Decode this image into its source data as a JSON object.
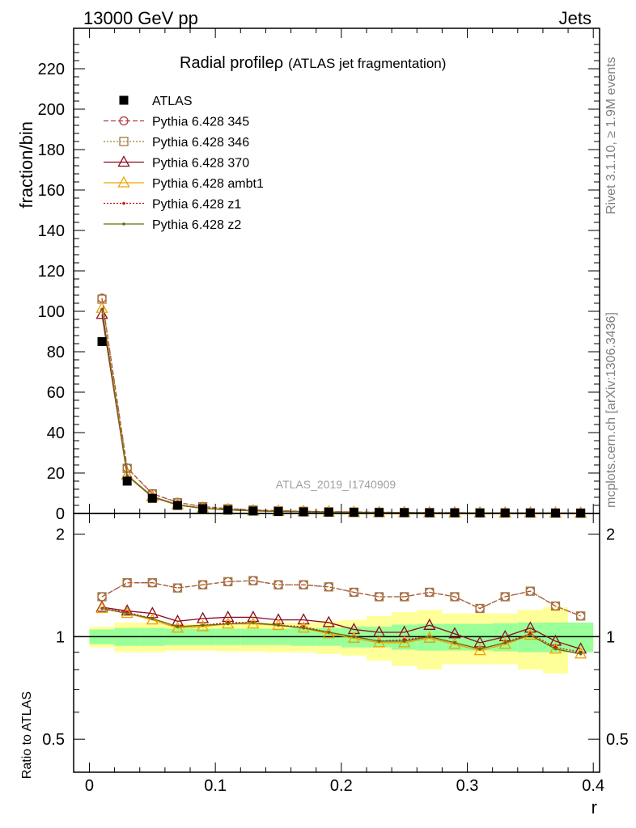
{
  "header": {
    "left": "13000 GeV pp",
    "right": "Jets"
  },
  "side_text": {
    "events": "Rivet 3.1.10, ≥ 1.9M events",
    "source": "mcplots.cern.ch [arXiv:1306.3436]"
  },
  "watermark": "ATLAS_2019_I1740909",
  "title": {
    "main": "Radial profile",
    "symbol": "ρ",
    "paren": "(ATLAS jet fragmentation)"
  },
  "colors": {
    "band_inner": "#99ff99",
    "band_outer": "#ffff99",
    "data": "#000000"
  },
  "chart_data": [
    {
      "type": "scatter",
      "panel": "main",
      "ylabel": "fraction/bin",
      "ylim": [
        0,
        240
      ],
      "xlim": [
        -0.0125,
        0.405
      ],
      "yticks": [
        0,
        20,
        40,
        60,
        80,
        100,
        120,
        140,
        160,
        180,
        200,
        220
      ],
      "x": [
        0.01,
        0.03,
        0.05,
        0.07,
        0.09,
        0.11,
        0.13,
        0.15,
        0.17,
        0.19,
        0.21,
        0.23,
        0.25,
        0.27,
        0.29,
        0.31,
        0.33,
        0.35,
        0.37,
        0.39
      ],
      "series": [
        {
          "name": "ATLAS",
          "color": "#000000",
          "marker": "square",
          "dash": "none",
          "values": [
            85,
            16,
            7.5,
            4.0,
            2.4,
            1.65,
            1.2,
            0.95,
            0.78,
            0.64,
            0.54,
            0.46,
            0.4,
            0.35,
            0.31,
            0.28,
            0.25,
            0.23,
            0.21,
            0.19
          ]
        },
        {
          "name": "Pythia 6.428 345",
          "color": "#b03b3b",
          "marker": "circle",
          "dash": "6,3",
          "values": [
            106.5,
            22.5,
            9.8,
            5.5,
            3.4,
            2.4,
            1.75,
            1.35,
            1.1,
            0.9,
            0.74,
            0.61,
            0.53,
            0.47,
            0.41,
            0.34,
            0.33,
            0.32,
            0.26,
            0.22
          ]
        },
        {
          "name": "Pythia 6.428 346",
          "color": "#a07b3b",
          "marker": "square-open",
          "dash": "2,2",
          "values": [
            106.0,
            22.3,
            9.7,
            5.4,
            3.35,
            2.35,
            1.73,
            1.33,
            1.08,
            0.88,
            0.73,
            0.6,
            0.52,
            0.46,
            0.4,
            0.33,
            0.32,
            0.31,
            0.25,
            0.21
          ]
        },
        {
          "name": "Pythia 6.428 370",
          "color": "#8b0a1e",
          "marker": "triangle",
          "dash": "none",
          "values": [
            98.5,
            19.0,
            8.4,
            4.3,
            2.64,
            1.85,
            1.37,
            1.06,
            0.86,
            0.68,
            0.56,
            0.47,
            0.41,
            0.37,
            0.31,
            0.27,
            0.25,
            0.245,
            0.2,
            0.175
          ]
        },
        {
          "name": "Pythia 6.428 ambt1",
          "color": "#f0a000",
          "marker": "triangle",
          "dash": "none",
          "values": [
            101.5,
            18.9,
            8.2,
            4.2,
            2.55,
            1.78,
            1.31,
            1.01,
            0.82,
            0.64,
            0.52,
            0.43,
            0.38,
            0.34,
            0.29,
            0.25,
            0.235,
            0.23,
            0.19,
            0.165
          ]
        },
        {
          "name": "Pythia 6.428 z1",
          "color": "#cc1010",
          "marker": "dot",
          "dash": "2,2",
          "values": [
            101.0,
            18.7,
            8.1,
            4.2,
            2.55,
            1.78,
            1.31,
            1.01,
            0.82,
            0.65,
            0.53,
            0.44,
            0.39,
            0.35,
            0.3,
            0.26,
            0.24,
            0.235,
            0.195,
            0.17
          ]
        },
        {
          "name": "Pythia 6.428 z2",
          "color": "#6b6b10",
          "marker": "dot",
          "dash": "none",
          "values": [
            101.0,
            18.7,
            8.1,
            4.15,
            2.53,
            1.77,
            1.3,
            1.0,
            0.81,
            0.64,
            0.52,
            0.44,
            0.38,
            0.34,
            0.29,
            0.25,
            0.235,
            0.23,
            0.19,
            0.165
          ]
        }
      ]
    },
    {
      "type": "scatter",
      "panel": "ratio",
      "ylabel": "Ratio to ATLAS",
      "xlabel": "r",
      "log_y": true,
      "ylim": [
        0.4,
        2.3
      ],
      "yticks": [
        0.5,
        1,
        2
      ],
      "xticks": [
        0,
        0.1,
        0.2,
        0.3,
        0.4
      ],
      "x_edges": [
        0.0,
        0.02,
        0.04,
        0.06,
        0.08,
        0.1,
        0.12,
        0.14,
        0.16,
        0.18,
        0.2,
        0.22,
        0.24,
        0.26,
        0.28,
        0.3,
        0.32,
        0.34,
        0.36,
        0.38,
        0.4
      ],
      "band_inner": [
        0.05,
        0.06,
        0.06,
        0.055,
        0.055,
        0.055,
        0.055,
        0.055,
        0.06,
        0.06,
        0.07,
        0.07,
        0.085,
        0.09,
        0.09,
        0.09,
        0.095,
        0.1,
        0.1,
        0.1
      ],
      "band_outer": [
        0.07,
        0.1,
        0.1,
        0.09,
        0.09,
        0.095,
        0.095,
        0.1,
        0.1,
        0.11,
        0.12,
        0.15,
        0.18,
        0.2,
        0.17,
        0.17,
        0.17,
        0.2,
        0.22,
        0.08
      ],
      "series": [
        {
          "name": "Pythia 6.428 345",
          "values": [
            1.31,
            1.44,
            1.44,
            1.39,
            1.42,
            1.45,
            1.46,
            1.42,
            1.42,
            1.4,
            1.35,
            1.31,
            1.31,
            1.35,
            1.31,
            1.21,
            1.31,
            1.36,
            1.23,
            1.15
          ]
        },
        {
          "name": "Pythia 6.428 346",
          "values": [
            1.31,
            1.44,
            1.44,
            1.39,
            1.42,
            1.45,
            1.46,
            1.42,
            1.42,
            1.4,
            1.35,
            1.31,
            1.31,
            1.35,
            1.31,
            1.21,
            1.31,
            1.36,
            1.23,
            1.15
          ]
        },
        {
          "name": "Pythia 6.428 370",
          "values": [
            1.22,
            1.19,
            1.17,
            1.11,
            1.13,
            1.14,
            1.14,
            1.12,
            1.12,
            1.1,
            1.05,
            1.03,
            1.03,
            1.08,
            1.02,
            0.96,
            1.0,
            1.06,
            0.97,
            0.92
          ]
        },
        {
          "name": "Pythia 6.428 ambt1",
          "values": [
            1.21,
            1.17,
            1.12,
            1.06,
            1.07,
            1.09,
            1.09,
            1.08,
            1.06,
            1.02,
            0.99,
            0.96,
            0.96,
            0.99,
            0.95,
            0.91,
            0.95,
            1.01,
            0.92,
            0.89
          ]
        },
        {
          "name": "Pythia 6.428 z1",
          "values": [
            1.21,
            1.18,
            1.13,
            1.07,
            1.08,
            1.1,
            1.1,
            1.08,
            1.07,
            1.03,
            1.0,
            0.97,
            0.98,
            1.0,
            0.96,
            0.92,
            0.96,
            1.02,
            0.93,
            0.9
          ]
        },
        {
          "name": "Pythia 6.428 z2",
          "values": [
            1.21,
            1.17,
            1.13,
            1.07,
            1.08,
            1.09,
            1.1,
            1.08,
            1.06,
            1.03,
            1.0,
            0.97,
            0.97,
            1.0,
            0.96,
            0.92,
            0.96,
            1.01,
            0.92,
            0.89
          ]
        }
      ]
    }
  ]
}
